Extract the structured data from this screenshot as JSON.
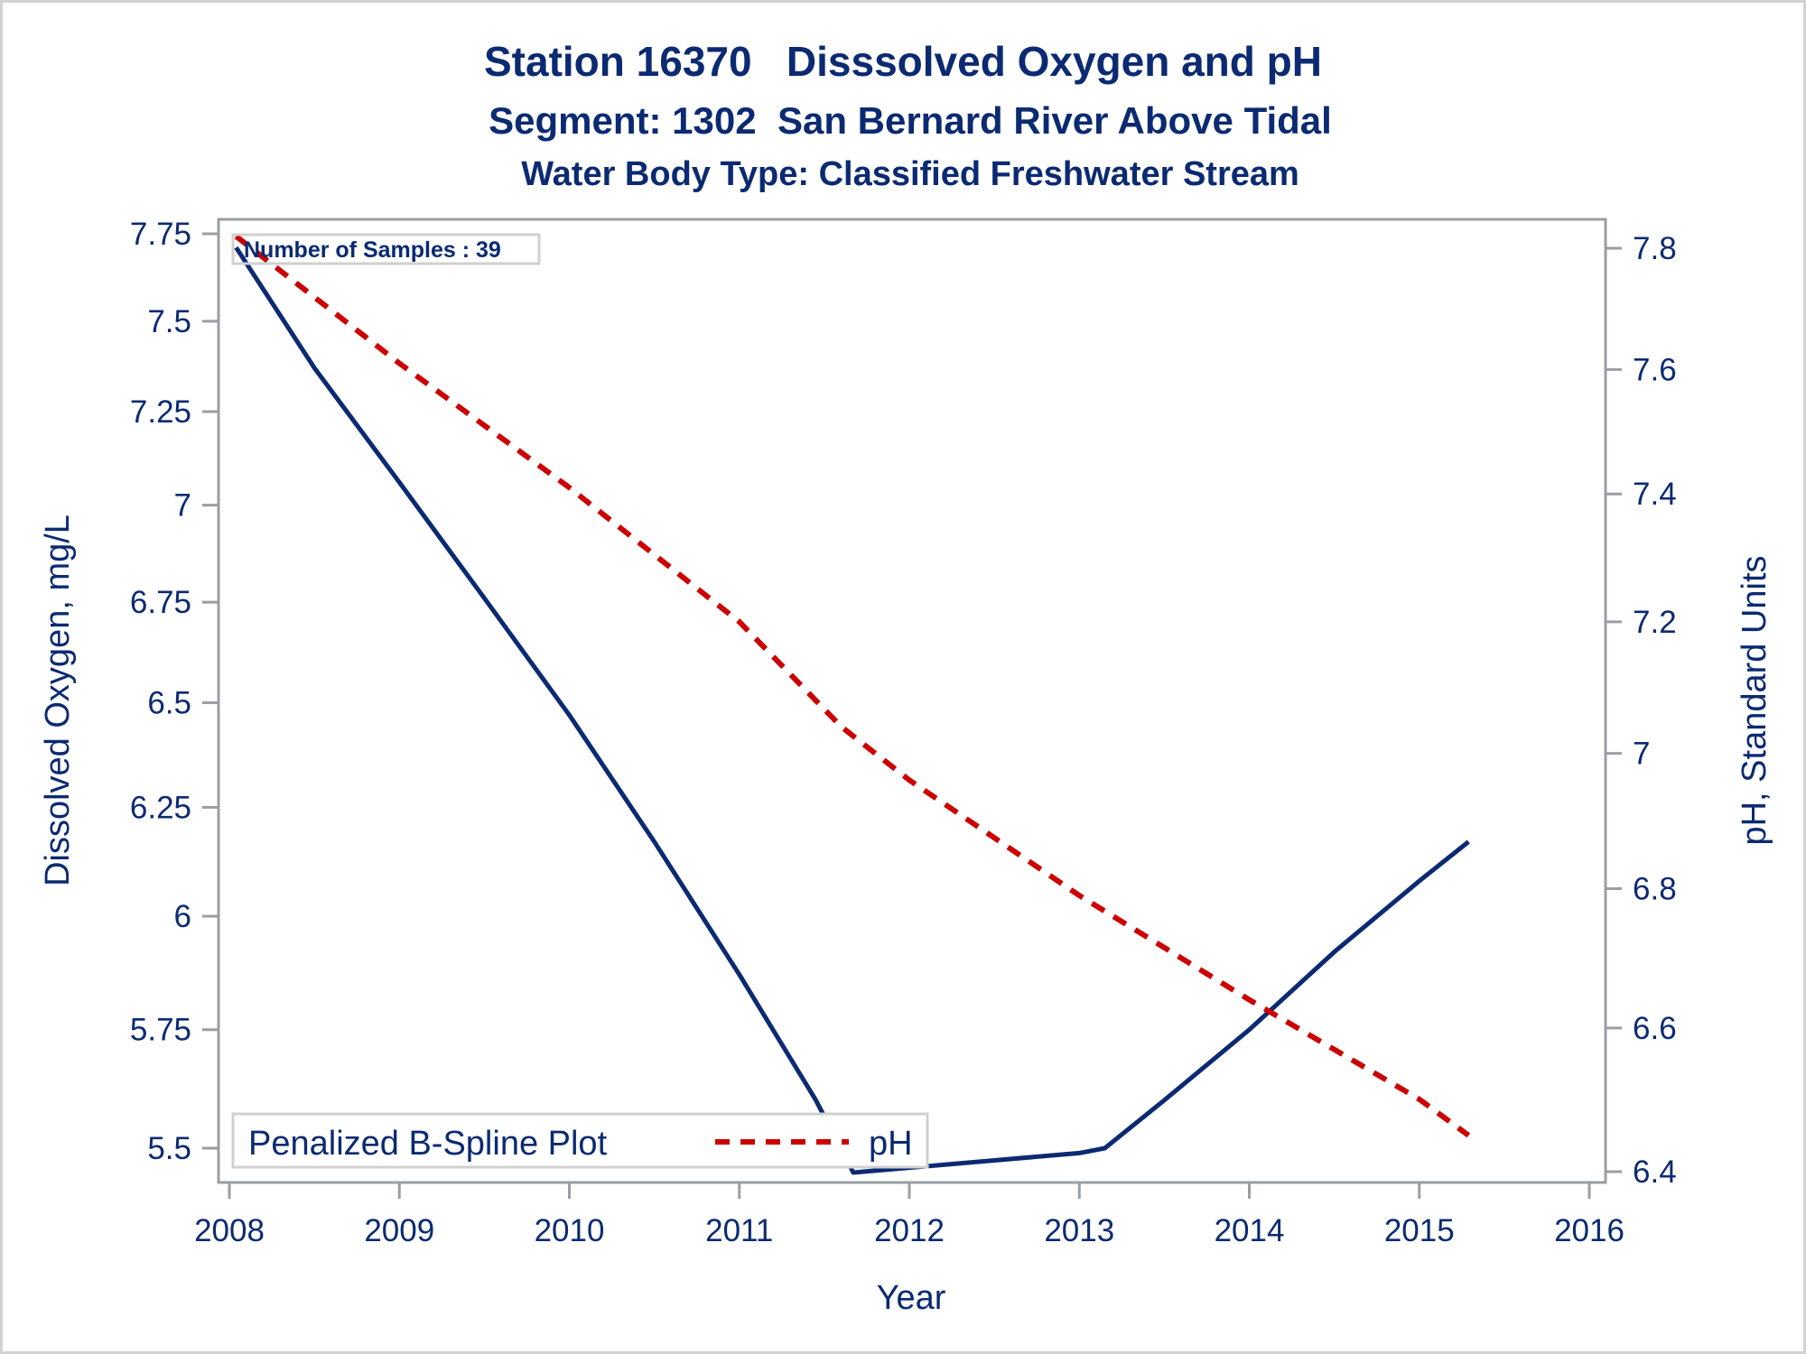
{
  "chart_data": {
    "type": "line",
    "title": "Station 16370   Disssolved Oxygen and pH",
    "subtitle": "Segment: 1302  San Bernard River Above Tidal",
    "subtitle2": "Water Body Type: Classified Freshwater Stream",
    "xlabel": "Year",
    "ylabel": "Dissolved Oxygen, mg/L",
    "y2label": "pH, Standard Units",
    "x_ticks": [
      "2008",
      "2009",
      "2010",
      "2011",
      "2012",
      "2013",
      "2014",
      "2015",
      "2016"
    ],
    "xlim": [
      2008,
      2016
    ],
    "y_ticks": [
      "7.75",
      "7.5",
      "7.25",
      "7",
      "6.75",
      "6.5",
      "6.25",
      "6",
      "5.75",
      "5.5"
    ],
    "y_scale": "log",
    "ylim": [
      5.5,
      7.75
    ],
    "y2_ticks": [
      "7.8",
      "7.6",
      "7.4",
      "7.2",
      "7",
      "6.8",
      "6.6",
      "6.4"
    ],
    "y2_scale": "log",
    "y2lim": [
      6.4,
      7.8
    ],
    "grid": false,
    "annotation": "Number of Samples : 39",
    "legend": {
      "title": "Penalized B-Spline Plot",
      "position": "bottom-left",
      "entries": [
        {
          "label": "pH",
          "style": "dashed",
          "color": "#cc0000"
        }
      ]
    },
    "series": [
      {
        "name": "Dissolved Oxygen",
        "axis": "left",
        "style": "solid",
        "color": "#0b2a72",
        "x": [
          2008.04,
          2008.5,
          2009.0,
          2009.5,
          2010.0,
          2010.5,
          2011.0,
          2011.45,
          2011.67,
          2012.0,
          2012.5,
          2013.0,
          2013.15,
          2013.5,
          2014.0,
          2014.5,
          2015.0,
          2015.29
        ],
        "y": [
          7.71,
          7.37,
          7.06,
          6.76,
          6.47,
          6.17,
          5.87,
          5.6,
          5.45,
          5.46,
          5.475,
          5.49,
          5.5,
          5.6,
          5.75,
          5.92,
          6.08,
          6.17
        ]
      },
      {
        "name": "pH",
        "axis": "right",
        "style": "dashed",
        "color": "#cc0000",
        "x": [
          2008.04,
          2009.0,
          2010.0,
          2011.0,
          2011.6,
          2012.0,
          2013.0,
          2014.0,
          2015.0,
          2015.29
        ],
        "y": [
          7.82,
          7.61,
          7.41,
          7.2,
          7.04,
          6.96,
          6.79,
          6.64,
          6.5,
          6.45
        ]
      }
    ]
  }
}
